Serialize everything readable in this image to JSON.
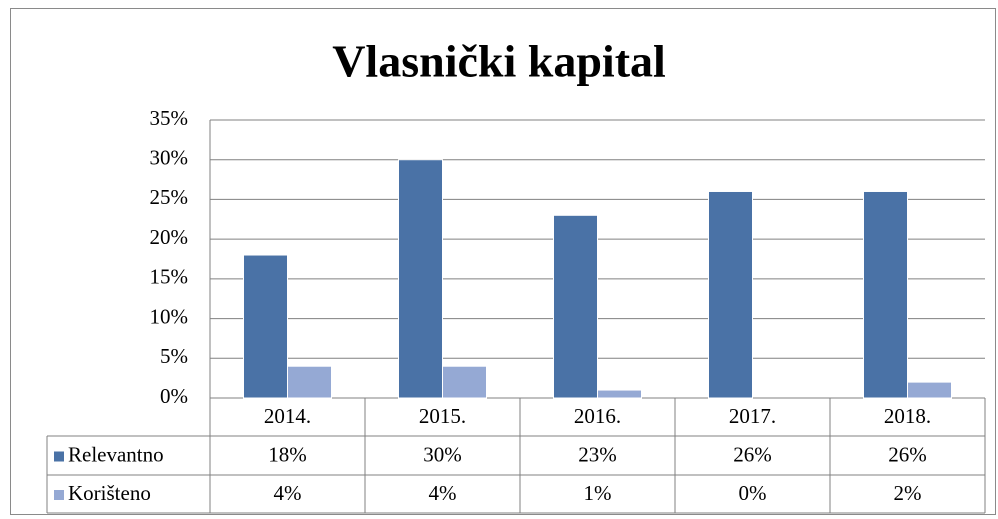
{
  "chart_data": {
    "type": "bar",
    "title": "Vlasnički kapital",
    "categories": [
      "2014.",
      "2015.",
      "2016.",
      "2017.",
      "2018."
    ],
    "series": [
      {
        "name": "Relevantno",
        "color": "#4a72a6",
        "values": [
          18,
          30,
          23,
          26,
          26
        ],
        "value_labels": [
          "18%",
          "30%",
          "23%",
          "26%",
          "26%"
        ]
      },
      {
        "name": "Korišteno",
        "color": "#95a9d4",
        "values": [
          4,
          4,
          1,
          0,
          2
        ],
        "value_labels": [
          "4%",
          "4%",
          "1%",
          "0%",
          "2%"
        ]
      }
    ],
    "ylim": [
      0,
      35
    ],
    "yticks": [
      {
        "value": 0,
        "label": "0%"
      },
      {
        "value": 5,
        "label": "5%"
      },
      {
        "value": 10,
        "label": "10%"
      },
      {
        "value": 15,
        "label": "15%"
      },
      {
        "value": 20,
        "label": "20%"
      },
      {
        "value": 25,
        "label": "25%"
      },
      {
        "value": 30,
        "label": "30%"
      },
      {
        "value": 35,
        "label": "35%"
      }
    ],
    "grid": true
  }
}
